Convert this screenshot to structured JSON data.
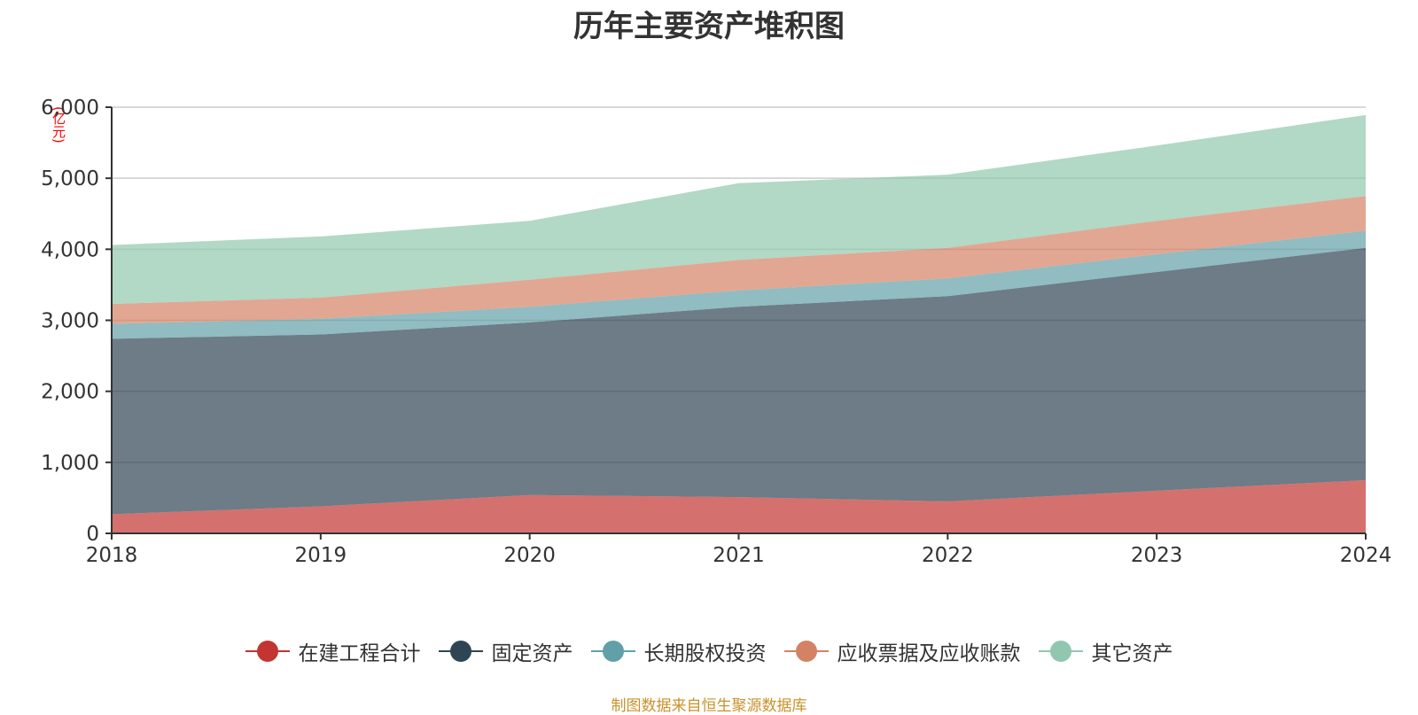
{
  "chart_data": {
    "type": "area",
    "stacked": true,
    "title": "历年主要资产堆积图",
    "unit_label": "(亿元)",
    "source": "制图数据来自恒生聚源数据库",
    "x": [
      "2018",
      "2019",
      "2020",
      "2021",
      "2022",
      "2023",
      "2024"
    ],
    "ylim": [
      0,
      6000
    ],
    "yticks": [
      0,
      1000,
      2000,
      3000,
      4000,
      5000,
      6000
    ],
    "ytick_labels": [
      "0",
      "1,000",
      "2,000",
      "3,000",
      "4,000",
      "5,000",
      "6,000"
    ],
    "grid": true,
    "legend_position": "bottom",
    "series": [
      {
        "name": "在建工程合计",
        "color": "#c23531",
        "values": [
          270,
          380,
          540,
          510,
          450,
          600,
          750
        ]
      },
      {
        "name": "固定资产",
        "color": "#2f4554",
        "values": [
          2470,
          2420,
          2430,
          2680,
          2890,
          3080,
          3270
        ]
      },
      {
        "name": "长期股权投资",
        "color": "#61a0a8",
        "values": [
          210,
          220,
          220,
          230,
          250,
          250,
          240
        ]
      },
      {
        "name": "应收票据及应收账款",
        "color": "#d48265",
        "values": [
          280,
          300,
          380,
          430,
          430,
          470,
          490
        ]
      },
      {
        "name": "其它资产",
        "color": "#91c7ae",
        "values": [
          830,
          860,
          830,
          1080,
          1030,
          1060,
          1140
        ]
      }
    ]
  }
}
